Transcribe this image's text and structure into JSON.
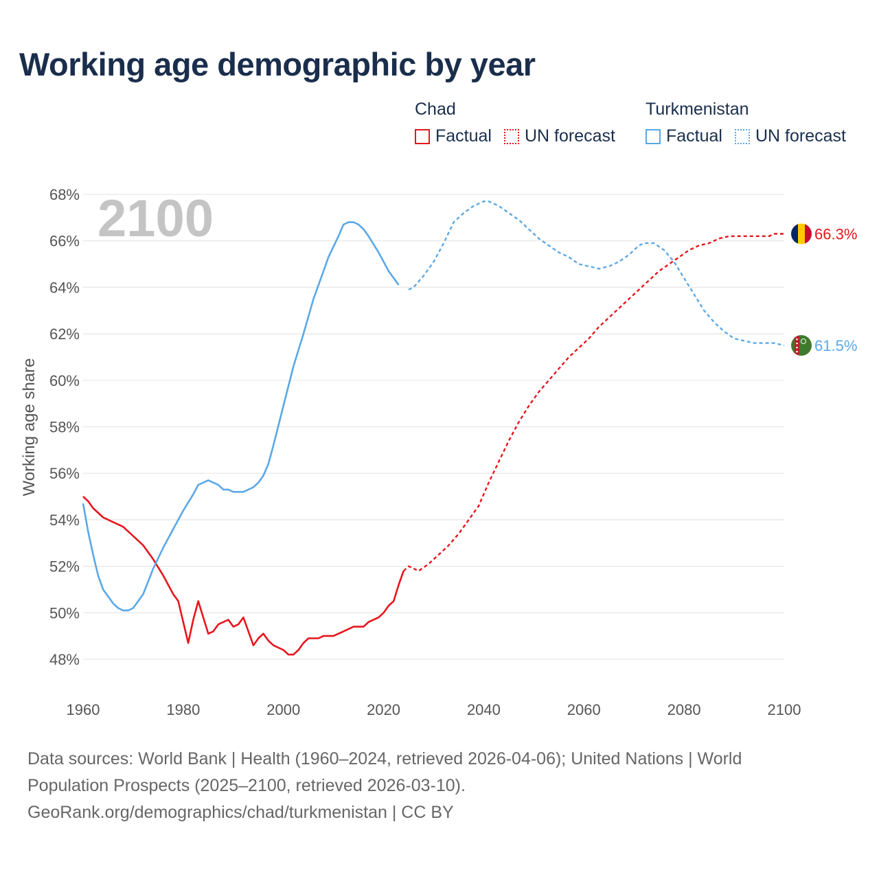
{
  "title": "Working age demographic by year",
  "legend": [
    {
      "name": "Chad",
      "factual_label": "Factual",
      "forecast_label": "UN forecast",
      "color": "#e8141b"
    },
    {
      "name": "Turkmenistan",
      "factual_label": "Factual",
      "forecast_label": "UN forecast",
      "color": "#5aa8e6"
    }
  ],
  "year_watermark": "2100",
  "chart_data": {
    "type": "line",
    "ylabel": "Working age share",
    "xlabel": "",
    "xlim": [
      1960,
      2100
    ],
    "ylim": [
      47,
      69
    ],
    "x_ticks": [
      "1960",
      "1980",
      "2000",
      "2020",
      "2040",
      "2060",
      "2080",
      "2100"
    ],
    "y_ticks": [
      "48%",
      "50%",
      "52%",
      "54%",
      "56%",
      "58%",
      "60%",
      "62%",
      "64%",
      "66%",
      "68%"
    ],
    "factual_end_year": 2024,
    "series": [
      {
        "name": "Chad",
        "color": "#e8141b",
        "end_label": "66.3%",
        "points": [
          [
            1960,
            55.0
          ],
          [
            1961,
            54.8
          ],
          [
            1962,
            54.5
          ],
          [
            1964,
            54.1
          ],
          [
            1966,
            53.9
          ],
          [
            1968,
            53.7
          ],
          [
            1970,
            53.3
          ],
          [
            1972,
            52.9
          ],
          [
            1974,
            52.3
          ],
          [
            1976,
            51.6
          ],
          [
            1978,
            50.8
          ],
          [
            1979,
            50.5
          ],
          [
            1981,
            48.7
          ],
          [
            1982,
            49.7
          ],
          [
            1983,
            50.5
          ],
          [
            1985,
            49.1
          ],
          [
            1986,
            49.2
          ],
          [
            1987,
            49.5
          ],
          [
            1989,
            49.7
          ],
          [
            1990,
            49.4
          ],
          [
            1991,
            49.5
          ],
          [
            1992,
            49.8
          ],
          [
            1994,
            48.6
          ],
          [
            1995,
            48.9
          ],
          [
            1996,
            49.1
          ],
          [
            1997,
            48.8
          ],
          [
            1998,
            48.6
          ],
          [
            2000,
            48.4
          ],
          [
            2001,
            48.2
          ],
          [
            2002,
            48.2
          ],
          [
            2003,
            48.4
          ],
          [
            2004,
            48.7
          ],
          [
            2005,
            48.9
          ],
          [
            2007,
            48.9
          ],
          [
            2008,
            49.0
          ],
          [
            2010,
            49.0
          ],
          [
            2012,
            49.2
          ],
          [
            2014,
            49.4
          ],
          [
            2016,
            49.4
          ],
          [
            2017,
            49.6
          ],
          [
            2019,
            49.8
          ],
          [
            2020,
            50.0
          ],
          [
            2021,
            50.3
          ],
          [
            2022,
            50.5
          ],
          [
            2023,
            51.2
          ],
          [
            2024,
            51.8
          ],
          [
            2025,
            52.0
          ],
          [
            2027,
            51.8
          ],
          [
            2029,
            52.1
          ],
          [
            2031,
            52.5
          ],
          [
            2033,
            52.9
          ],
          [
            2035,
            53.4
          ],
          [
            2037,
            54.0
          ],
          [
            2039,
            54.6
          ],
          [
            2041,
            55.6
          ],
          [
            2043,
            56.5
          ],
          [
            2045,
            57.4
          ],
          [
            2047,
            58.2
          ],
          [
            2049,
            58.9
          ],
          [
            2051,
            59.5
          ],
          [
            2053,
            60.0
          ],
          [
            2055,
            60.5
          ],
          [
            2057,
            61.0
          ],
          [
            2059,
            61.4
          ],
          [
            2061,
            61.8
          ],
          [
            2063,
            62.3
          ],
          [
            2065,
            62.7
          ],
          [
            2067,
            63.1
          ],
          [
            2069,
            63.5
          ],
          [
            2071,
            63.9
          ],
          [
            2073,
            64.3
          ],
          [
            2075,
            64.7
          ],
          [
            2077,
            65.0
          ],
          [
            2079,
            65.3
          ],
          [
            2081,
            65.6
          ],
          [
            2083,
            65.8
          ],
          [
            2085,
            65.9
          ],
          [
            2087,
            66.1
          ],
          [
            2089,
            66.2
          ],
          [
            2091,
            66.2
          ],
          [
            2095,
            66.2
          ],
          [
            2097,
            66.2
          ],
          [
            2098,
            66.3
          ],
          [
            2100,
            66.3
          ]
        ]
      },
      {
        "name": "Turkmenistan",
        "color": "#5aa8e6",
        "end_label": "61.5%",
        "points": [
          [
            1960,
            54.7
          ],
          [
            1961,
            53.5
          ],
          [
            1962,
            52.5
          ],
          [
            1963,
            51.6
          ],
          [
            1964,
            51.0
          ],
          [
            1966,
            50.4
          ],
          [
            1967,
            50.2
          ],
          [
            1968,
            50.1
          ],
          [
            1969,
            50.1
          ],
          [
            1970,
            50.2
          ],
          [
            1972,
            50.8
          ],
          [
            1974,
            51.9
          ],
          [
            1976,
            52.8
          ],
          [
            1978,
            53.6
          ],
          [
            1980,
            54.4
          ],
          [
            1982,
            55.1
          ],
          [
            1983,
            55.5
          ],
          [
            1985,
            55.7
          ],
          [
            1987,
            55.5
          ],
          [
            1988,
            55.3
          ],
          [
            1989,
            55.3
          ],
          [
            1990,
            55.2
          ],
          [
            1992,
            55.2
          ],
          [
            1994,
            55.4
          ],
          [
            1995,
            55.6
          ],
          [
            1996,
            55.9
          ],
          [
            1997,
            56.4
          ],
          [
            1998,
            57.2
          ],
          [
            2000,
            58.9
          ],
          [
            2002,
            60.6
          ],
          [
            2004,
            62.0
          ],
          [
            2006,
            63.5
          ],
          [
            2008,
            64.7
          ],
          [
            2009,
            65.3
          ],
          [
            2011,
            66.2
          ],
          [
            2012,
            66.7
          ],
          [
            2013,
            66.8
          ],
          [
            2014,
            66.8
          ],
          [
            2015,
            66.7
          ],
          [
            2016,
            66.5
          ],
          [
            2017,
            66.2
          ],
          [
            2019,
            65.5
          ],
          [
            2021,
            64.7
          ],
          [
            2022,
            64.4
          ],
          [
            2023,
            64.1
          ],
          [
            2025,
            63.9
          ],
          [
            2026,
            64.0
          ],
          [
            2028,
            64.5
          ],
          [
            2030,
            65.1
          ],
          [
            2032,
            65.9
          ],
          [
            2034,
            66.8
          ],
          [
            2036,
            67.2
          ],
          [
            2038,
            67.5
          ],
          [
            2040,
            67.7
          ],
          [
            2041,
            67.7
          ],
          [
            2043,
            67.5
          ],
          [
            2045,
            67.2
          ],
          [
            2047,
            66.9
          ],
          [
            2049,
            66.5
          ],
          [
            2051,
            66.1
          ],
          [
            2053,
            65.8
          ],
          [
            2055,
            65.5
          ],
          [
            2057,
            65.3
          ],
          [
            2059,
            65.0
          ],
          [
            2061,
            64.9
          ],
          [
            2063,
            64.8
          ],
          [
            2065,
            64.9
          ],
          [
            2067,
            65.1
          ],
          [
            2069,
            65.4
          ],
          [
            2071,
            65.8
          ],
          [
            2072,
            65.9
          ],
          [
            2073,
            65.9
          ],
          [
            2074,
            65.9
          ],
          [
            2076,
            65.6
          ],
          [
            2078,
            65.1
          ],
          [
            2080,
            64.4
          ],
          [
            2082,
            63.7
          ],
          [
            2084,
            63.0
          ],
          [
            2086,
            62.5
          ],
          [
            2088,
            62.1
          ],
          [
            2090,
            61.8
          ],
          [
            2092,
            61.7
          ],
          [
            2094,
            61.6
          ],
          [
            2098,
            61.6
          ],
          [
            2100,
            61.5
          ]
        ]
      }
    ]
  },
  "footer": {
    "line1": "Data sources: World Bank | Health (1960–2024, retrieved 2026-04-06); United Nations | World",
    "line2": "Population Prospects (2025–2100, retrieved 2026-03-10).",
    "line3": "GeoRank.org/demographics/chad/turkmenistan | CC BY"
  }
}
